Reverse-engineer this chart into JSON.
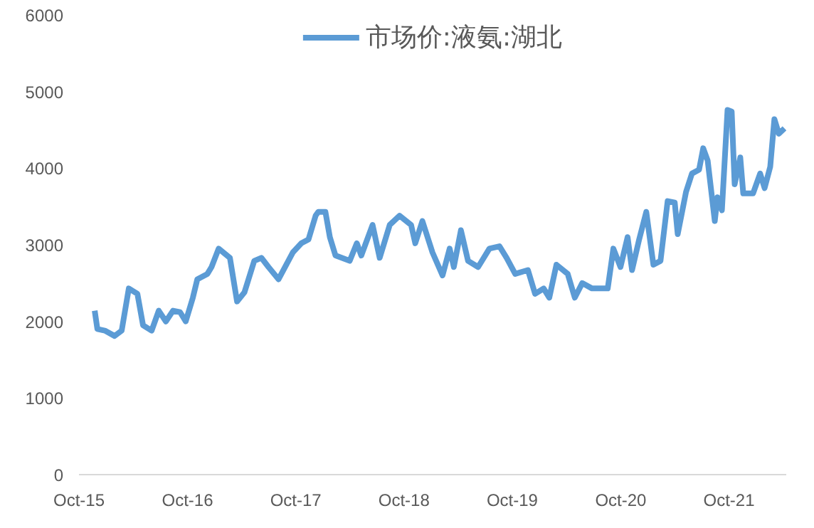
{
  "chart_data": {
    "type": "line",
    "legend": "top",
    "grid": false,
    "line_style": "solid",
    "marker": "none",
    "xlim": [
      "2015-10-01",
      "2022-04-12"
    ],
    "xticks": [
      {
        "value": "2015-10-01",
        "label": "Oct-15"
      },
      {
        "value": "2016-10-01",
        "label": "Oct-16"
      },
      {
        "value": "2017-10-01",
        "label": "Oct-17"
      },
      {
        "value": "2018-10-01",
        "label": "Oct-18"
      },
      {
        "value": "2019-10-01",
        "label": "Oct-19"
      },
      {
        "value": "2020-10-01",
        "label": "Oct-20"
      },
      {
        "value": "2021-10-01",
        "label": "Oct-21"
      }
    ],
    "ylim": [
      0,
      6000
    ],
    "yticks": [
      0,
      1000,
      2000,
      3000,
      4000,
      5000,
      6000
    ],
    "x": [
      "2015-11-23",
      "2015-12-02",
      "2015-12-27",
      "2016-01-29",
      "2016-02-22",
      "2016-03-17",
      "2016-04-15",
      "2016-05-04",
      "2016-06-02",
      "2016-06-26",
      "2016-07-20",
      "2016-08-13",
      "2016-09-06",
      "2016-09-25",
      "2016-10-19",
      "2016-11-03",
      "2016-12-07",
      "2016-12-21",
      "2017-01-14",
      "2017-02-21",
      "2017-03-17",
      "2017-04-11",
      "2017-05-14",
      "2017-06-07",
      "2017-07-01",
      "2017-08-04",
      "2017-09-21",
      "2017-10-20",
      "2017-11-13",
      "2017-12-07",
      "2017-12-16",
      "2018-01-09",
      "2018-01-24",
      "2018-02-12",
      "2018-04-01",
      "2018-04-25",
      "2018-05-10",
      "2018-06-17",
      "2018-07-11",
      "2018-08-14",
      "2018-09-16",
      "2018-10-25",
      "2018-11-08",
      "2018-12-02",
      "2019-01-05",
      "2019-02-08",
      "2019-03-04",
      "2019-03-18",
      "2019-04-11",
      "2019-05-05",
      "2019-06-08",
      "2019-07-16",
      "2019-08-19",
      "2019-09-12",
      "2019-10-11",
      "2019-11-23",
      "2019-12-17",
      "2020-01-15",
      "2020-02-03",
      "2020-02-27",
      "2020-04-05",
      "2020-04-29",
      "2020-05-24",
      "2020-06-26",
      "2020-08-18",
      "2020-09-06",
      "2020-09-30",
      "2020-10-24",
      "2020-11-08",
      "2020-12-02",
      "2020-12-26",
      "2021-01-19",
      "2021-02-12",
      "2021-03-08",
      "2021-04-01",
      "2021-04-11",
      "2021-05-09",
      "2021-05-29",
      "2021-06-22",
      "2021-07-06",
      "2021-07-21",
      "2021-08-14",
      "2021-08-23",
      "2021-09-07",
      "2021-09-26",
      "2021-10-10",
      "2021-10-20",
      "2021-11-08",
      "2021-11-18",
      "2021-12-21",
      "2022-01-14",
      "2022-01-29",
      "2022-02-17",
      "2022-03-03",
      "2022-03-18",
      "2022-04-06"
    ],
    "series": [
      {
        "name": "市场价:液氨:湖北",
        "color": "#5b9bd5",
        "values": [
          2140,
          1900,
          1880,
          1810,
          1880,
          2430,
          2360,
          1950,
          1880,
          2140,
          2000,
          2140,
          2120,
          2000,
          2310,
          2550,
          2620,
          2710,
          2950,
          2830,
          2260,
          2380,
          2790,
          2830,
          2710,
          2550,
          2900,
          3020,
          3070,
          3380,
          3430,
          3430,
          3100,
          2860,
          2790,
          3020,
          2860,
          3260,
          2830,
          3260,
          3380,
          3260,
          3020,
          3310,
          2900,
          2600,
          2950,
          2710,
          3190,
          2790,
          2710,
          2950,
          2980,
          2830,
          2620,
          2670,
          2360,
          2430,
          2310,
          2740,
          2620,
          2310,
          2500,
          2430,
          2430,
          2950,
          2710,
          3100,
          2670,
          3070,
          3430,
          2740,
          2790,
          3570,
          3550,
          3140,
          3690,
          3930,
          3980,
          4260,
          4100,
          3310,
          3620,
          3450,
          4760,
          4740,
          3790,
          4140,
          3670,
          3670,
          3930,
          3740,
          4020,
          4640,
          4450,
          4520
        ]
      }
    ]
  }
}
